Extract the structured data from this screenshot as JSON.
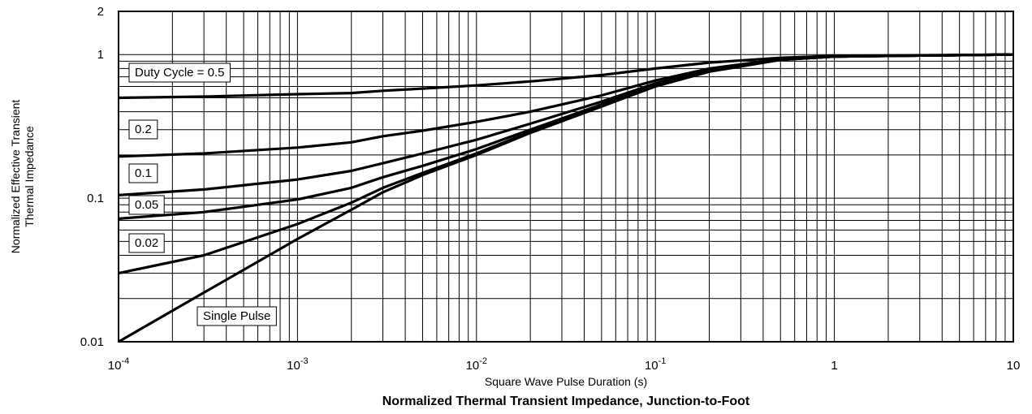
{
  "chart_data": {
    "type": "line",
    "title": "Normalized Thermal Transient Impedance, Junction-to-Foot",
    "xlabel": "Square Wave Pulse Duration (s)",
    "ylabel": "Normalized Effective Transient Thermal Impedance",
    "xscale": "log",
    "yscale": "log",
    "xlim": [
      0.0001,
      10
    ],
    "ylim": [
      0.01,
      2
    ],
    "grid": true,
    "x_ticks": [
      {
        "mantissa": "10",
        "exp": "-4",
        "value": 0.0001
      },
      {
        "mantissa": "10",
        "exp": "-3",
        "value": 0.001
      },
      {
        "mantissa": "10",
        "exp": "-2",
        "value": 0.01
      },
      {
        "mantissa": "10",
        "exp": "-1",
        "value": 0.1
      },
      {
        "mantissa": "1",
        "exp": "",
        "value": 1
      },
      {
        "mantissa": "10",
        "exp": "",
        "value": 10
      }
    ],
    "y_ticks": [
      {
        "label": "0.01",
        "value": 0.01
      },
      {
        "label": "0.1",
        "value": 0.1
      },
      {
        "label": "1",
        "value": 1
      },
      {
        "label": "2",
        "value": 2
      }
    ],
    "series": [
      {
        "name": "Duty Cycle = 0.5",
        "x": [
          0.0001,
          0.0003,
          0.001,
          0.002,
          0.003,
          0.005,
          0.01,
          0.02,
          0.05,
          0.1,
          0.2,
          0.5,
          1,
          10
        ],
        "y": [
          0.5,
          0.51,
          0.53,
          0.54,
          0.56,
          0.58,
          0.61,
          0.65,
          0.72,
          0.8,
          0.88,
          0.95,
          0.98,
          1.0
        ]
      },
      {
        "name": "0.2",
        "x": [
          0.0001,
          0.0003,
          0.001,
          0.002,
          0.003,
          0.005,
          0.01,
          0.02,
          0.05,
          0.1,
          0.2,
          0.5,
          1,
          10
        ],
        "y": [
          0.195,
          0.205,
          0.225,
          0.245,
          0.27,
          0.295,
          0.34,
          0.4,
          0.52,
          0.66,
          0.8,
          0.93,
          0.97,
          1.0
        ]
      },
      {
        "name": "0.1",
        "x": [
          0.0001,
          0.0003,
          0.001,
          0.002,
          0.003,
          0.005,
          0.01,
          0.02,
          0.05,
          0.1,
          0.2,
          0.5,
          1,
          10
        ],
        "y": [
          0.105,
          0.115,
          0.135,
          0.155,
          0.175,
          0.205,
          0.255,
          0.33,
          0.47,
          0.63,
          0.78,
          0.92,
          0.97,
          1.0
        ]
      },
      {
        "name": "0.05",
        "x": [
          0.0001,
          0.0003,
          0.001,
          0.002,
          0.003,
          0.005,
          0.01,
          0.02,
          0.05,
          0.1,
          0.2,
          0.5,
          1,
          10
        ],
        "y": [
          0.072,
          0.08,
          0.098,
          0.118,
          0.14,
          0.168,
          0.22,
          0.3,
          0.45,
          0.62,
          0.77,
          0.92,
          0.97,
          1.0
        ]
      },
      {
        "name": "0.02",
        "x": [
          0.0001,
          0.0003,
          0.001,
          0.002,
          0.003,
          0.005,
          0.01,
          0.02,
          0.05,
          0.1,
          0.2,
          0.5,
          1,
          10
        ],
        "y": [
          0.03,
          0.04,
          0.066,
          0.093,
          0.118,
          0.15,
          0.205,
          0.29,
          0.44,
          0.61,
          0.77,
          0.92,
          0.97,
          1.0
        ]
      },
      {
        "name": "Single Pulse",
        "x": [
          0.0001,
          0.0003,
          0.001,
          0.002,
          0.003,
          0.005,
          0.01,
          0.02,
          0.05,
          0.1,
          0.2,
          0.5,
          1,
          10
        ],
        "y": [
          0.01,
          0.022,
          0.052,
          0.083,
          0.11,
          0.145,
          0.2,
          0.285,
          0.435,
          0.6,
          0.76,
          0.92,
          0.97,
          1.0
        ]
      }
    ]
  }
}
